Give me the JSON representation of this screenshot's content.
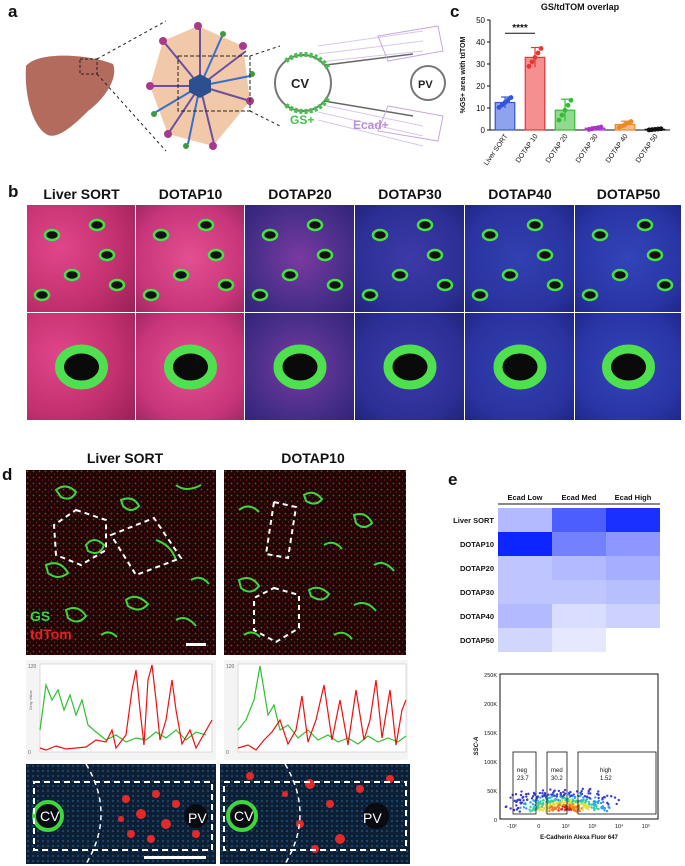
{
  "panels": {
    "a": "a",
    "b": "b",
    "c": "c",
    "d": "d",
    "e": "e"
  },
  "panel_a": {
    "cv": "CV",
    "pv": "PV",
    "gs": "GS+",
    "ecad": "Ecad+"
  },
  "panel_b": {
    "columns": [
      "Liver SORT",
      "DOTAP10",
      "DOTAP20",
      "DOTAP30",
      "DOTAP40",
      "DOTAP50"
    ]
  },
  "panel_d": {
    "columns": [
      "Liver SORT",
      "DOTAP10"
    ],
    "legend_gs": "GS",
    "legend_tdtom": "tdTom",
    "cv": "CV",
    "pv": "PV"
  },
  "chart_data": [
    {
      "type": "bar",
      "title": "GS/tdTOM overlap",
      "ylabel": "%GS+ area with tdTOM",
      "categories": [
        "Liver SORT",
        "DOTAP 10",
        "DOTAP 20",
        "DOTAP 30",
        "DOTAP 40",
        "DOTAP 50"
      ],
      "values": [
        12.5,
        33,
        9,
        0.8,
        2.5,
        0.3
      ],
      "errors": [
        2.5,
        4.5,
        5,
        0.6,
        1.5,
        0.3
      ],
      "colors": [
        "#3355dd",
        "#ee3333",
        "#33bb33",
        "#aa33cc",
        "#ee8822",
        "#111111"
      ],
      "ylim": [
        0,
        50
      ],
      "yticks": [
        0,
        10,
        20,
        30,
        40,
        50
      ],
      "significance": "****"
    },
    {
      "type": "heatmap",
      "columns": [
        "Ecad Low",
        "Ecad Med",
        "Ecad High"
      ],
      "rows": [
        "Liver SORT",
        "DOTAP10",
        "DOTAP20",
        "DOTAP30",
        "DOTAP40",
        "DOTAP50"
      ],
      "values": [
        [
          0.3,
          0.7,
          0.9
        ],
        [
          0.95,
          0.55,
          0.45
        ],
        [
          0.25,
          0.3,
          0.35
        ],
        [
          0.25,
          0.25,
          0.28
        ],
        [
          0.3,
          0.15,
          0.2
        ],
        [
          0.18,
          0.1,
          0.0
        ]
      ]
    },
    {
      "type": "scatter",
      "ylabel": "SSC-A",
      "xlabel": "E-Cadherin Alexa Fluor 647",
      "yticks": [
        "0",
        "50K",
        "100K",
        "150K",
        "200K",
        "250K"
      ],
      "xticks": [
        "-10²",
        "0",
        "10²",
        "10³",
        "10⁴",
        "10⁵"
      ],
      "gates": [
        {
          "name": "neg",
          "value": "23.7"
        },
        {
          "name": "med",
          "value": "30.2"
        },
        {
          "name": "high",
          "value": "1.52"
        }
      ]
    }
  ]
}
